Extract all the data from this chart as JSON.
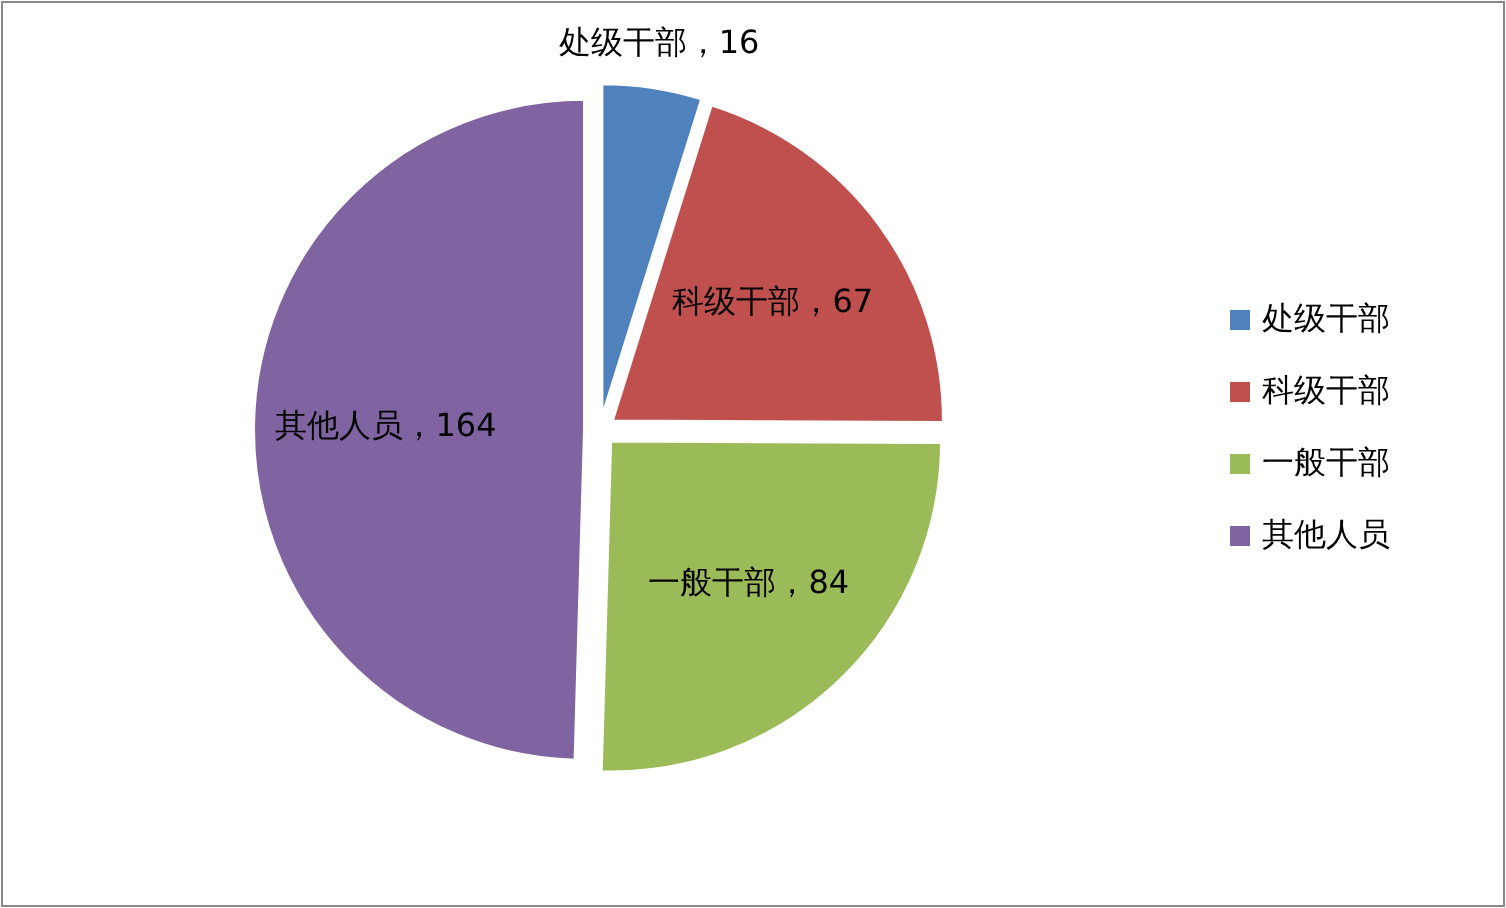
{
  "chart_data": {
    "type": "pie",
    "categories": [
      "处级干部",
      "科级干部",
      "一般干部",
      "其他人员"
    ],
    "values": [
      16,
      67,
      84,
      164
    ],
    "colors": [
      "#4f81bd",
      "#c0504d",
      "#9bbb59",
      "#8064a2"
    ],
    "value_labels": [
      "处级干部，16",
      "科级干部，67",
      "一般干部，84",
      "其他人员，164"
    ],
    "legend": "right"
  }
}
